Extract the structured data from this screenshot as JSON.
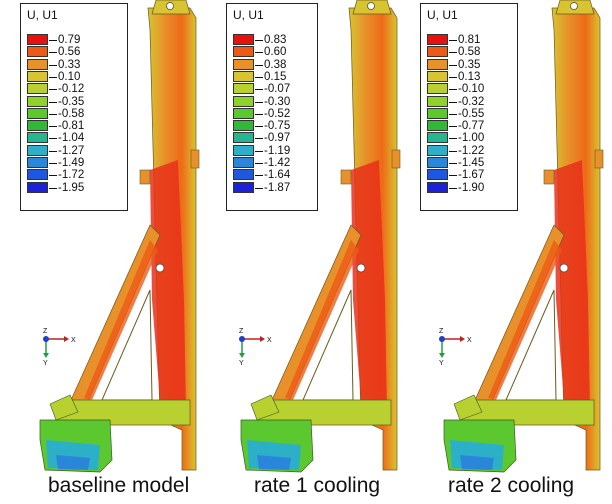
{
  "figure": {
    "panels": [
      {
        "legend_title": "U, U1",
        "legend_values": [
          "0.79",
          "0.56",
          "0.33",
          "0.10",
          "-0.12",
          "-0.35",
          "-0.58",
          "-0.81",
          "-1.04",
          "-1.27",
          "-1.49",
          "-1.72",
          "-1.95"
        ],
        "caption": "baseline model",
        "triad": {
          "x_label": "X",
          "y_label": "Y",
          "z_label": "Z"
        }
      },
      {
        "legend_title": "U, U1",
        "legend_values": [
          "0.83",
          "0.60",
          "0.38",
          "0.15",
          "-0.07",
          "-0.30",
          "-0.52",
          "-0.75",
          "-0.97",
          "-1.19",
          "-1.42",
          "-1.64",
          "-1.87"
        ],
        "caption": "rate 1 cooling",
        "triad": {
          "x_label": "X",
          "y_label": "Y",
          "z_label": "Z"
        }
      },
      {
        "legend_title": "U, U1",
        "legend_values": [
          "0.81",
          "0.58",
          "0.35",
          "0.13",
          "-0.10",
          "-0.32",
          "-0.55",
          "-0.77",
          "-1.00",
          "-1.22",
          "-1.45",
          "-1.67",
          "-1.90"
        ],
        "caption": "rate 2 cooling",
        "triad": {
          "x_label": "X",
          "y_label": "Y",
          "z_label": "Z"
        }
      }
    ],
    "contour_colors": [
      "#e8110d",
      "#ee5a14",
      "#e8902a",
      "#d8c430",
      "#b8d030",
      "#8ed22a",
      "#5cc830",
      "#2fb83a",
      "#27b58f",
      "#2cb0c8",
      "#2a86d8",
      "#1e58e0",
      "#1c22d8"
    ]
  }
}
